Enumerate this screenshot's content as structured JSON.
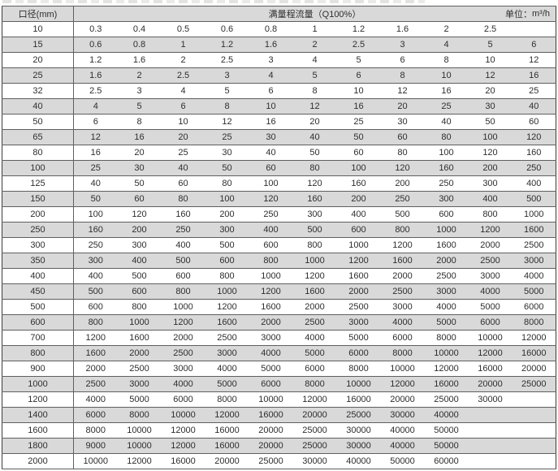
{
  "table": {
    "header": {
      "diameter_label": "口径(mm)",
      "flow_title": "满量程流量（Q100%）",
      "unit_label": "单位：",
      "unit_value": "m³/h"
    },
    "rows": [
      {
        "diameter": "10",
        "values": [
          "0.3",
          "0.4",
          "0.5",
          "0.6",
          "0.8",
          "1",
          "1.2",
          "1.6",
          "2",
          "2.5",
          ""
        ]
      },
      {
        "diameter": "15",
        "values": [
          "0.6",
          "0.8",
          "1",
          "1.2",
          "1.6",
          "2",
          "2.5",
          "3",
          "4",
          "5",
          "6"
        ]
      },
      {
        "diameter": "20",
        "values": [
          "1.2",
          "1.6",
          "2",
          "2.5",
          "3",
          "4",
          "5",
          "6",
          "8",
          "10",
          "12"
        ]
      },
      {
        "diameter": "25",
        "values": [
          "1.6",
          "2",
          "2.5",
          "3",
          "4",
          "5",
          "6",
          "8",
          "10",
          "12",
          "16"
        ]
      },
      {
        "diameter": "32",
        "values": [
          "2.5",
          "3",
          "4",
          "5",
          "6",
          "8",
          "10",
          "12",
          "16",
          "20",
          "25"
        ]
      },
      {
        "diameter": "40",
        "values": [
          "4",
          "5",
          "6",
          "8",
          "10",
          "12",
          "16",
          "20",
          "25",
          "30",
          "40"
        ]
      },
      {
        "diameter": "50",
        "values": [
          "6",
          "8",
          "10",
          "12",
          "16",
          "20",
          "25",
          "30",
          "40",
          "50",
          "60"
        ]
      },
      {
        "diameter": "65",
        "values": [
          "12",
          "16",
          "20",
          "25",
          "30",
          "40",
          "50",
          "60",
          "80",
          "100",
          "120"
        ]
      },
      {
        "diameter": "80",
        "values": [
          "16",
          "20",
          "25",
          "30",
          "40",
          "50",
          "60",
          "80",
          "100",
          "120",
          "160"
        ]
      },
      {
        "diameter": "100",
        "values": [
          "25",
          "30",
          "40",
          "50",
          "60",
          "80",
          "100",
          "120",
          "160",
          "200",
          "250"
        ]
      },
      {
        "diameter": "125",
        "values": [
          "40",
          "50",
          "60",
          "80",
          "100",
          "120",
          "160",
          "200",
          "250",
          "300",
          "400"
        ]
      },
      {
        "diameter": "150",
        "values": [
          "50",
          "60",
          "80",
          "100",
          "120",
          "160",
          "200",
          "250",
          "300",
          "400",
          "500"
        ]
      },
      {
        "diameter": "200",
        "values": [
          "100",
          "120",
          "160",
          "200",
          "250",
          "300",
          "400",
          "500",
          "600",
          "800",
          "1000"
        ]
      },
      {
        "diameter": "250",
        "values": [
          "160",
          "200",
          "250",
          "300",
          "400",
          "500",
          "600",
          "800",
          "1000",
          "1200",
          "1600"
        ]
      },
      {
        "diameter": "300",
        "values": [
          "250",
          "300",
          "400",
          "500",
          "600",
          "800",
          "1000",
          "1200",
          "1600",
          "2000",
          "2500"
        ]
      },
      {
        "diameter": "350",
        "values": [
          "300",
          "400",
          "500",
          "600",
          "800",
          "1000",
          "1200",
          "1600",
          "2000",
          "2500",
          "3000"
        ]
      },
      {
        "diameter": "400",
        "values": [
          "400",
          "500",
          "600",
          "800",
          "1000",
          "1200",
          "1600",
          "2000",
          "2500",
          "3000",
          "4000"
        ]
      },
      {
        "diameter": "450",
        "values": [
          "500",
          "600",
          "800",
          "1000",
          "1200",
          "1600",
          "2000",
          "2500",
          "3000",
          "4000",
          "5000"
        ]
      },
      {
        "diameter": "500",
        "values": [
          "600",
          "800",
          "1000",
          "1200",
          "1600",
          "2000",
          "2500",
          "3000",
          "4000",
          "5000",
          "6000"
        ]
      },
      {
        "diameter": "600",
        "values": [
          "800",
          "1000",
          "1200",
          "1600",
          "2000",
          "2500",
          "3000",
          "4000",
          "5000",
          "6000",
          "8000"
        ]
      },
      {
        "diameter": "700",
        "values": [
          "1200",
          "1600",
          "2000",
          "2500",
          "3000",
          "4000",
          "5000",
          "6000",
          "8000",
          "10000",
          "12000"
        ]
      },
      {
        "diameter": "800",
        "values": [
          "1600",
          "2000",
          "2500",
          "3000",
          "4000",
          "5000",
          "6000",
          "8000",
          "10000",
          "12000",
          "16000"
        ]
      },
      {
        "diameter": "900",
        "values": [
          "2000",
          "2500",
          "3000",
          "4000",
          "5000",
          "6000",
          "8000",
          "10000",
          "12000",
          "16000",
          "20000"
        ]
      },
      {
        "diameter": "1000",
        "values": [
          "2500",
          "3000",
          "4000",
          "5000",
          "6000",
          "8000",
          "10000",
          "12000",
          "16000",
          "20000",
          "25000"
        ]
      },
      {
        "diameter": "1200",
        "values": [
          "4000",
          "5000",
          "6000",
          "8000",
          "10000",
          "12000",
          "16000",
          "20000",
          "25000",
          "30000",
          ""
        ]
      },
      {
        "diameter": "1400",
        "values": [
          "6000",
          "8000",
          "10000",
          "12000",
          "16000",
          "20000",
          "25000",
          "30000",
          "40000",
          "",
          ""
        ]
      },
      {
        "diameter": "1600",
        "values": [
          "8000",
          "10000",
          "12000",
          "16000",
          "20000",
          "25000",
          "30000",
          "40000",
          "50000",
          "",
          ""
        ]
      },
      {
        "diameter": "1800",
        "values": [
          "9000",
          "10000",
          "12000",
          "16000",
          "20000",
          "25000",
          "30000",
          "40000",
          "50000",
          "",
          ""
        ]
      },
      {
        "diameter": "2000",
        "values": [
          "10000",
          "12000",
          "16000",
          "20000",
          "25000",
          "30000",
          "40000",
          "50000",
          "60000",
          "",
          ""
        ]
      }
    ]
  },
  "colors": {
    "stripe": "#d9d9d9",
    "row_border": "#5f5f5f",
    "outer_border": "#3c3c3c",
    "text": "#2e2e2e"
  }
}
